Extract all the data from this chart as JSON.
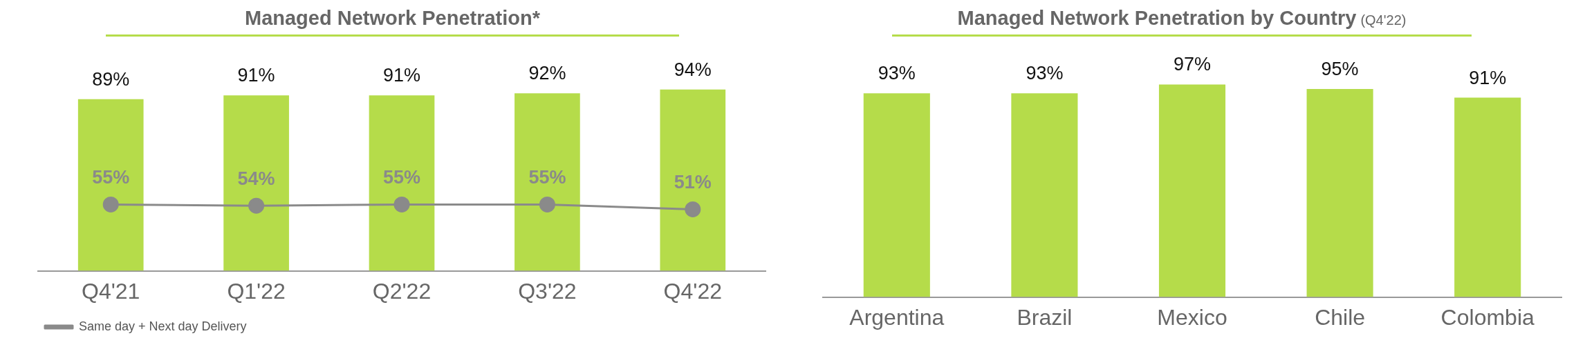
{
  "chart_data": [
    {
      "type": "bar",
      "title": "Managed Network Penetration*",
      "categories": [
        "Q4'21",
        "Q1'22",
        "Q2'22",
        "Q3'22",
        "Q4'22"
      ],
      "tick_labels": "x",
      "grid": false,
      "legend": "bottom left",
      "marker": "circle",
      "series": [
        {
          "type": "bar",
          "color": "#b5dc4a",
          "values": [
            89,
            91,
            91,
            92,
            94
          ],
          "value_labels": [
            "89%",
            "91%",
            "91%",
            "92%",
            "94%"
          ]
        },
        {
          "type": "line",
          "axis": "y2",
          "name": "Same day + Next day Delivery",
          "color": "#8a8a8a",
          "values": [
            55,
            54,
            55,
            55,
            51
          ],
          "value_labels": [
            "55%",
            "54%",
            "55%",
            "55%",
            "51%"
          ]
        }
      ]
    },
    {
      "type": "bar",
      "title": "Managed Network Penetration by Country",
      "subtitle": "(Q4'22)",
      "categories": [
        "Argentina",
        "Brazil",
        "Mexico",
        "Chile",
        "Colombia"
      ],
      "tick_labels": "x",
      "grid": false,
      "legend": false,
      "series": [
        {
          "type": "bar",
          "color": "#b5dc4a",
          "values": [
            93,
            93,
            97,
            95,
            91
          ],
          "value_labels": [
            "93%",
            "93%",
            "97%",
            "95%",
            "91%"
          ]
        }
      ]
    }
  ]
}
